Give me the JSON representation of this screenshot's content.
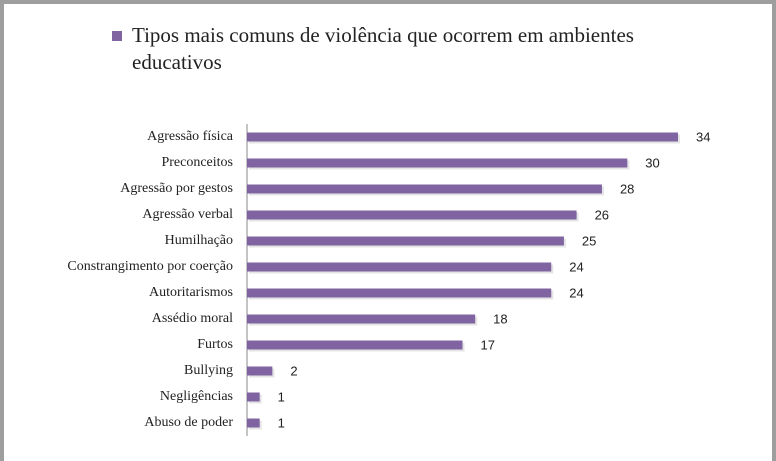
{
  "chart_data": {
    "type": "bar",
    "orientation": "horizontal",
    "categories": [
      "Agressão física",
      "Preconceitos",
      "Agressão por gestos",
      "Agressão verbal",
      "Humilhação",
      "Constrangimento por coerção",
      "Autoritarismos",
      "Assédio moral",
      "Furtos",
      "Bullying",
      "Negligências",
      "Abuso de poder"
    ],
    "series": [
      {
        "name": "Tipos mais comuns de violência que ocorrem em ambientes educativos",
        "color": "#8064a2",
        "values": [
          34,
          30,
          28,
          26,
          25,
          24,
          24,
          18,
          17,
          2,
          1,
          1
        ]
      }
    ],
    "legend": "top"
  }
}
